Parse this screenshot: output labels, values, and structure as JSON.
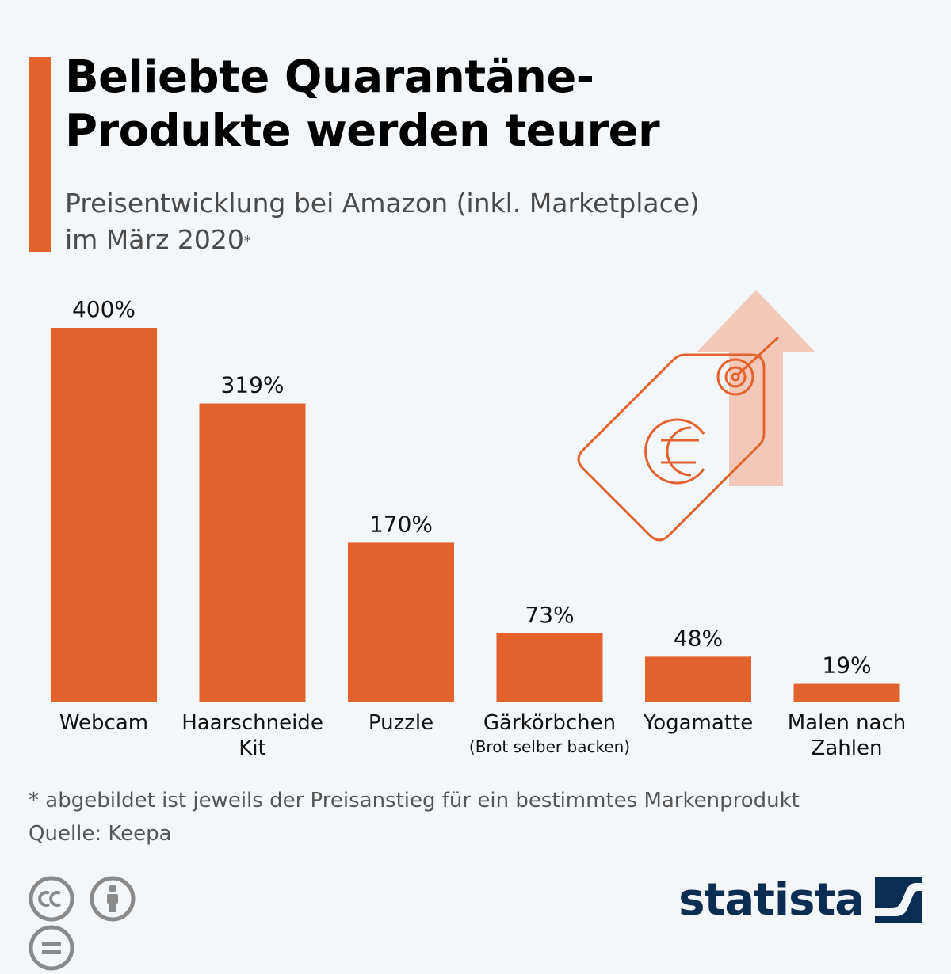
{
  "header": {
    "title_line1": "Beliebte Quarantäne-",
    "title_line2": "Produkte werden teurer",
    "subtitle_line1": "Preisentwicklung bei Amazon (inkl. Marketplace)",
    "subtitle_line2": "im März 2020",
    "subtitle_mark": "*"
  },
  "chart_data": {
    "type": "bar",
    "categories": [
      {
        "label": "Webcam",
        "sublabel": ""
      },
      {
        "label": "Haarschneide Kit",
        "sublabel": ""
      },
      {
        "label": "Puzzle",
        "sublabel": ""
      },
      {
        "label": "Gärkörbchen",
        "sublabel": "(Brot selber backen)"
      },
      {
        "label": "Yogamatte",
        "sublabel": ""
      },
      {
        "label": "Malen nach Zahlen",
        "sublabel": ""
      }
    ],
    "values": [
      400,
      319,
      170,
      73,
      48,
      19
    ],
    "value_labels": [
      "400%",
      "319%",
      "170%",
      "73%",
      "48%",
      "19%"
    ],
    "unit": "%",
    "ylim": [
      0,
      400
    ],
    "grid": false,
    "bar_color": "#e2622e"
  },
  "footer": {
    "footnote": "* abgebildet ist jeweils der Preisanstieg für ein bestimmtes Markenprodukt",
    "source": "Quelle: Keepa",
    "logo_text": "statista"
  },
  "colors": {
    "accent": "#e2622e",
    "brand": "#0c2d52",
    "illustration_light": "#f2c9b8"
  },
  "icons": [
    "price-tag-icon",
    "euro-icon",
    "up-arrow-icon",
    "cc-icon",
    "by-icon",
    "nd-icon",
    "statista-logo-icon"
  ]
}
